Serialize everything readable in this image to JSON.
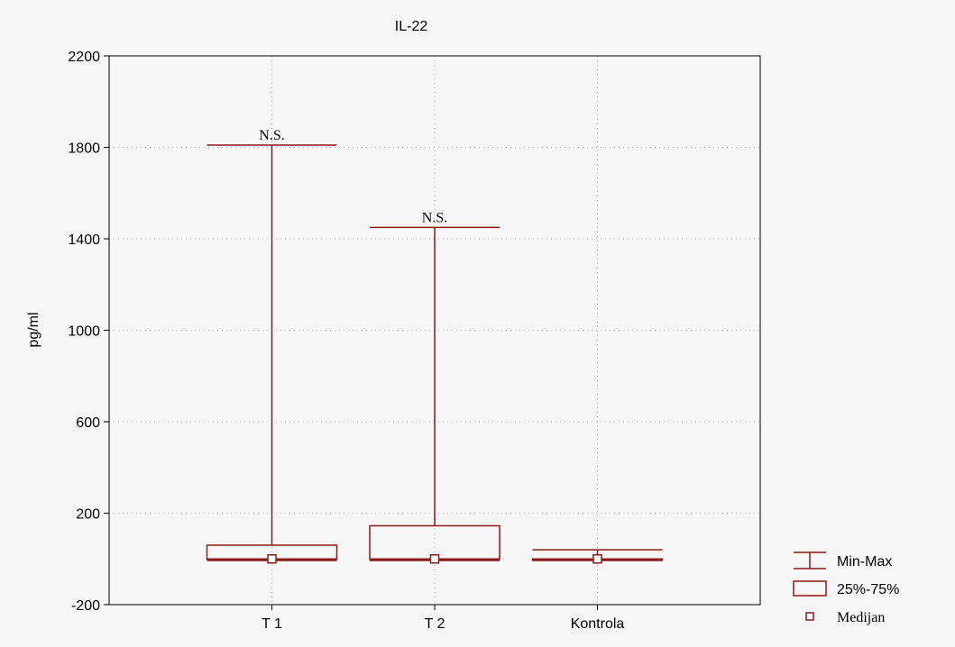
{
  "chart_data": {
    "type": "boxplot",
    "title": "IL-22",
    "ylabel": "pg/ml",
    "xlabel": "",
    "ylim": [
      -200,
      2200
    ],
    "yticks": [
      -200,
      200,
      600,
      1000,
      1400,
      1800,
      2200
    ],
    "grid": true,
    "color": "#8b1a1a",
    "legend_position": "bottom-right",
    "categories": [
      "T 1",
      "T 2",
      "Kontrola"
    ],
    "groups": [
      {
        "label": "T 1",
        "min": 0,
        "q1": 0,
        "median": 0,
        "q3": 60,
        "max": 1810,
        "annotation": "N.S."
      },
      {
        "label": "T 2",
        "min": 0,
        "q1": 0,
        "median": 0,
        "q3": 145,
        "max": 1450,
        "annotation": "N.S."
      },
      {
        "label": "Kontrola",
        "min": 0,
        "q1": 0,
        "median": 0,
        "q3": 0,
        "max": 40,
        "annotation": ""
      }
    ],
    "legend": [
      {
        "kind": "whisker",
        "label": "Min-Max"
      },
      {
        "kind": "box",
        "label": "25%-75%"
      },
      {
        "kind": "median",
        "label": "Medijan"
      }
    ]
  }
}
